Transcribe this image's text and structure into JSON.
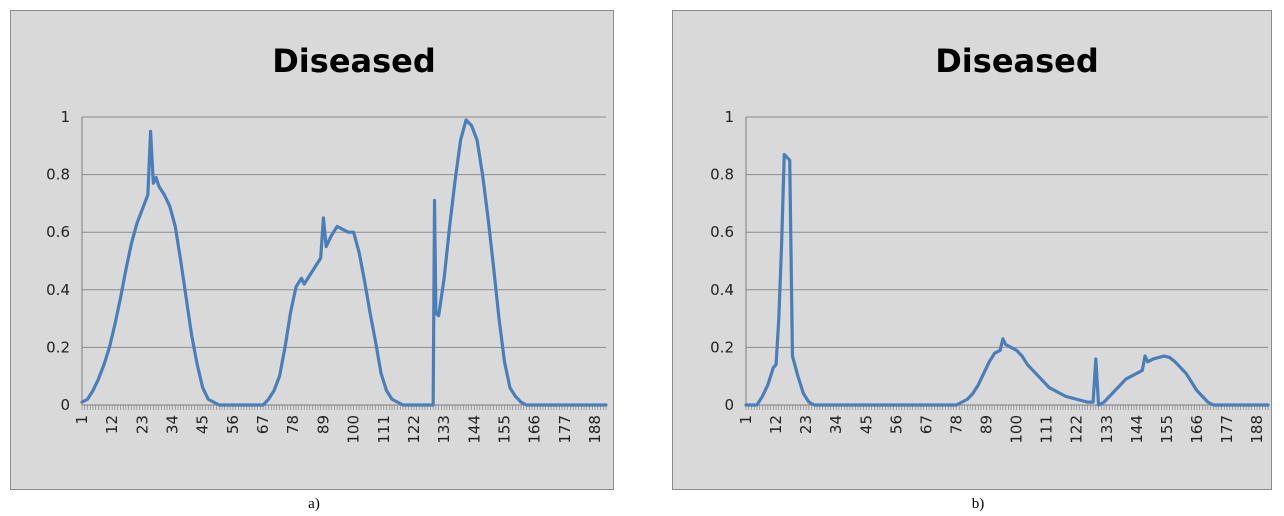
{
  "chart_data": [
    {
      "type": "line",
      "title": "Diseased",
      "caption": "a)",
      "xlabel": "",
      "ylabel": "",
      "ylim": [
        0,
        1
      ],
      "xlim": [
        1,
        192
      ],
      "yticks": [
        "0",
        "0.2",
        "0.4",
        "0.6",
        "0.8",
        "1"
      ],
      "xticks": [
        "1",
        "12",
        "23",
        "34",
        "45",
        "56",
        "67",
        "78",
        "89",
        "100",
        "111",
        "122",
        "133",
        "144",
        "155",
        "166",
        "177",
        "188"
      ],
      "grid": true,
      "legend": "none",
      "color": "#4a7ebb",
      "points": [
        [
          1,
          0.01
        ],
        [
          3,
          0.02
        ],
        [
          5,
          0.05
        ],
        [
          7,
          0.09
        ],
        [
          9,
          0.14
        ],
        [
          11,
          0.2
        ],
        [
          13,
          0.28
        ],
        [
          15,
          0.37
        ],
        [
          17,
          0.47
        ],
        [
          19,
          0.56
        ],
        [
          21,
          0.63
        ],
        [
          23,
          0.68
        ],
        [
          25,
          0.73
        ],
        [
          26,
          0.95
        ],
        [
          27,
          0.77
        ],
        [
          28,
          0.79
        ],
        [
          29,
          0.76
        ],
        [
          31,
          0.73
        ],
        [
          33,
          0.69
        ],
        [
          35,
          0.62
        ],
        [
          37,
          0.5
        ],
        [
          39,
          0.37
        ],
        [
          41,
          0.24
        ],
        [
          43,
          0.14
        ],
        [
          45,
          0.06
        ],
        [
          47,
          0.02
        ],
        [
          49,
          0.01
        ],
        [
          51,
          0.0
        ],
        [
          67,
          0.0
        ],
        [
          69,
          0.02
        ],
        [
          71,
          0.05
        ],
        [
          73,
          0.1
        ],
        [
          75,
          0.2
        ],
        [
          77,
          0.32
        ],
        [
          79,
          0.41
        ],
        [
          81,
          0.44
        ],
        [
          82,
          0.42
        ],
        [
          84,
          0.45
        ],
        [
          86,
          0.48
        ],
        [
          88,
          0.51
        ],
        [
          89,
          0.65
        ],
        [
          90,
          0.55
        ],
        [
          92,
          0.59
        ],
        [
          94,
          0.62
        ],
        [
          96,
          0.61
        ],
        [
          98,
          0.6
        ],
        [
          100,
          0.6
        ],
        [
          102,
          0.53
        ],
        [
          104,
          0.43
        ],
        [
          106,
          0.32
        ],
        [
          108,
          0.22
        ],
        [
          110,
          0.11
        ],
        [
          112,
          0.05
        ],
        [
          114,
          0.02
        ],
        [
          116,
          0.01
        ],
        [
          118,
          0.0
        ],
        [
          129,
          0.0
        ],
        [
          129.5,
          0.71
        ],
        [
          130,
          0.32
        ],
        [
          131,
          0.31
        ],
        [
          133,
          0.44
        ],
        [
          135,
          0.62
        ],
        [
          137,
          0.78
        ],
        [
          139,
          0.92
        ],
        [
          141,
          0.99
        ],
        [
          143,
          0.97
        ],
        [
          145,
          0.92
        ],
        [
          147,
          0.8
        ],
        [
          149,
          0.65
        ],
        [
          151,
          0.48
        ],
        [
          153,
          0.3
        ],
        [
          155,
          0.15
        ],
        [
          157,
          0.06
        ],
        [
          159,
          0.03
        ],
        [
          161,
          0.01
        ],
        [
          163,
          0.0
        ],
        [
          192,
          0.0
        ]
      ]
    },
    {
      "type": "line",
      "title": "Diseased",
      "caption": "b)",
      "xlabel": "",
      "ylabel": "",
      "ylim": [
        0,
        1
      ],
      "xlim": [
        1,
        192
      ],
      "yticks": [
        "0",
        "0.2",
        "0.4",
        "0.6",
        "0.8",
        "1"
      ],
      "xticks": [
        "1",
        "12",
        "23",
        "34",
        "45",
        "56",
        "67",
        "78",
        "89",
        "100",
        "111",
        "122",
        "133",
        "144",
        "155",
        "166",
        "177",
        "188"
      ],
      "grid": true,
      "legend": "none",
      "color": "#4a7ebb",
      "points": [
        [
          1,
          0.0
        ],
        [
          5,
          0.0
        ],
        [
          7,
          0.03
        ],
        [
          9,
          0.07
        ],
        [
          11,
          0.13
        ],
        [
          12,
          0.14
        ],
        [
          13,
          0.3
        ],
        [
          14,
          0.55
        ],
        [
          15,
          0.87
        ],
        [
          16,
          0.86
        ],
        [
          17,
          0.85
        ],
        [
          18,
          0.17
        ],
        [
          20,
          0.1
        ],
        [
          22,
          0.04
        ],
        [
          24,
          0.01
        ],
        [
          26,
          0.0
        ],
        [
          78,
          0.0
        ],
        [
          80,
          0.01
        ],
        [
          82,
          0.02
        ],
        [
          84,
          0.04
        ],
        [
          86,
          0.07
        ],
        [
          88,
          0.11
        ],
        [
          90,
          0.15
        ],
        [
          92,
          0.18
        ],
        [
          94,
          0.19
        ],
        [
          95,
          0.23
        ],
        [
          96,
          0.21
        ],
        [
          98,
          0.2
        ],
        [
          100,
          0.19
        ],
        [
          102,
          0.17
        ],
        [
          104,
          0.14
        ],
        [
          106,
          0.12
        ],
        [
          108,
          0.1
        ],
        [
          110,
          0.08
        ],
        [
          112,
          0.06
        ],
        [
          114,
          0.05
        ],
        [
          116,
          0.04
        ],
        [
          118,
          0.03
        ],
        [
          120,
          0.025
        ],
        [
          122,
          0.02
        ],
        [
          124,
          0.015
        ],
        [
          126,
          0.01
        ],
        [
          128,
          0.01
        ],
        [
          129,
          0.16
        ],
        [
          130,
          0.0
        ],
        [
          132,
          0.01
        ],
        [
          134,
          0.03
        ],
        [
          136,
          0.05
        ],
        [
          138,
          0.07
        ],
        [
          140,
          0.09
        ],
        [
          142,
          0.1
        ],
        [
          144,
          0.11
        ],
        [
          146,
          0.12
        ],
        [
          147,
          0.17
        ],
        [
          148,
          0.15
        ],
        [
          150,
          0.16
        ],
        [
          152,
          0.165
        ],
        [
          154,
          0.17
        ],
        [
          156,
          0.165
        ],
        [
          158,
          0.15
        ],
        [
          160,
          0.13
        ],
        [
          162,
          0.11
        ],
        [
          164,
          0.08
        ],
        [
          166,
          0.05
        ],
        [
          168,
          0.03
        ],
        [
          170,
          0.01
        ],
        [
          172,
          0.0
        ],
        [
          192,
          0.0
        ]
      ]
    }
  ]
}
